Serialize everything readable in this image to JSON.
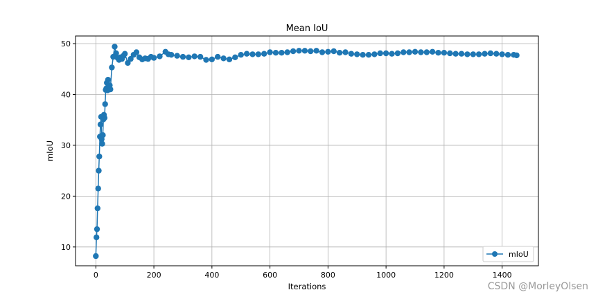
{
  "chart_data": {
    "type": "line",
    "title": "Mean IoU",
    "xlabel": "Iterations",
    "ylabel": "mIoU",
    "xlim": [
      -70,
      1525
    ],
    "ylim": [
      6.3,
      51.5
    ],
    "xticks": [
      0,
      200,
      400,
      600,
      800,
      1000,
      1200,
      1400
    ],
    "yticks": [
      10,
      20,
      30,
      40,
      50
    ],
    "grid": true,
    "legend_position": "lower-right",
    "marker": "circle",
    "color": "#1f77b4",
    "series": [
      {
        "name": "mIoU",
        "x": [
          0,
          2,
          4,
          6,
          8,
          10,
          12,
          14,
          16,
          18,
          20,
          22,
          24,
          26,
          28,
          30,
          32,
          34,
          36,
          38,
          40,
          42,
          44,
          46,
          48,
          50,
          55,
          60,
          65,
          70,
          75,
          80,
          85,
          90,
          95,
          100,
          110,
          120,
          130,
          140,
          150,
          160,
          170,
          180,
          190,
          200,
          220,
          240,
          250,
          260,
          280,
          300,
          320,
          340,
          360,
          380,
          400,
          420,
          440,
          460,
          480,
          500,
          520,
          540,
          560,
          580,
          600,
          620,
          640,
          660,
          680,
          700,
          720,
          740,
          760,
          780,
          800,
          820,
          840,
          860,
          880,
          900,
          920,
          940,
          960,
          980,
          1000,
          1020,
          1040,
          1060,
          1080,
          1100,
          1120,
          1140,
          1160,
          1180,
          1200,
          1220,
          1240,
          1260,
          1280,
          1300,
          1320,
          1340,
          1360,
          1380,
          1400,
          1420,
          1440,
          1450
        ],
        "y": [
          8.2,
          11.9,
          13.5,
          17.6,
          21.5,
          25.0,
          27.8,
          31.7,
          34.1,
          35.6,
          31.2,
          30.3,
          32.0,
          35.1,
          36.0,
          35.4,
          38.1,
          40.9,
          41.2,
          42.3,
          40.8,
          42.9,
          41.8,
          41.1,
          41.8,
          41.0,
          45.3,
          47.4,
          49.4,
          48.1,
          47.2,
          46.8,
          47.3,
          47.0,
          47.6,
          48.0,
          46.2,
          47.0,
          47.8,
          48.3,
          47.3,
          46.9,
          47.1,
          47.0,
          47.4,
          47.2,
          47.5,
          48.4,
          47.9,
          47.8,
          47.6,
          47.4,
          47.3,
          47.5,
          47.4,
          46.8,
          46.9,
          47.4,
          47.1,
          46.9,
          47.3,
          47.8,
          48.0,
          47.9,
          47.9,
          48.0,
          48.3,
          48.2,
          48.2,
          48.3,
          48.5,
          48.6,
          48.6,
          48.5,
          48.6,
          48.3,
          48.4,
          48.5,
          48.2,
          48.3,
          48.0,
          47.9,
          47.8,
          47.8,
          47.9,
          48.1,
          48.1,
          48.0,
          48.1,
          48.3,
          48.3,
          48.4,
          48.3,
          48.3,
          48.4,
          48.2,
          48.2,
          48.1,
          48.0,
          48.0,
          47.9,
          47.9,
          47.9,
          48.0,
          48.1,
          48.0,
          47.9,
          47.8,
          47.8,
          47.7
        ]
      }
    ]
  },
  "watermark": "CSDN @MorleyOlsen"
}
